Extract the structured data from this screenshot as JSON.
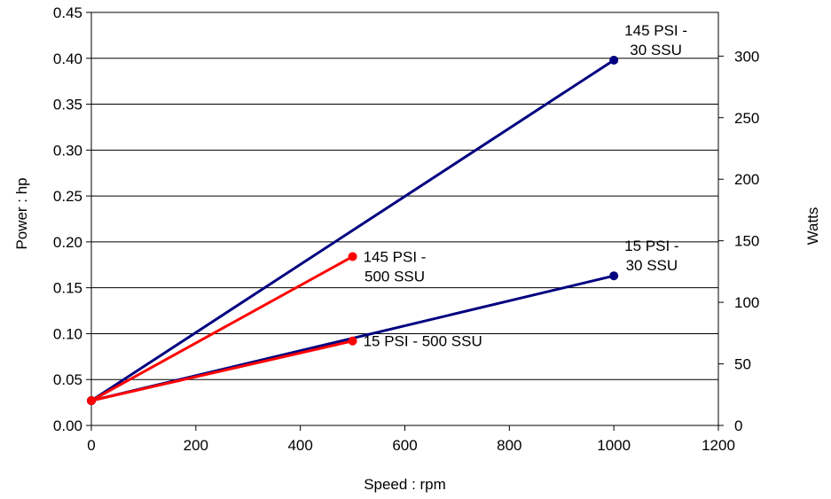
{
  "chart_data": {
    "type": "line",
    "xlabel": "Speed : rpm",
    "ylabel": "Power : hp",
    "y2label": "Watts",
    "xlim": [
      0,
      1200
    ],
    "ylim": [
      0,
      0.45
    ],
    "y2lim": [
      0,
      335.5
    ],
    "x_ticks": [
      "0",
      "200",
      "400",
      "600",
      "800",
      "1000",
      "1200"
    ],
    "y_ticks": [
      "0.00",
      "0.05",
      "0.10",
      "0.15",
      "0.20",
      "0.25",
      "0.30",
      "0.35",
      "0.40",
      "0.45"
    ],
    "y2_ticks": [
      "0",
      "50",
      "100",
      "150",
      "200",
      "250",
      "300"
    ],
    "grid": "horizontal",
    "series": [
      {
        "color": "#000080",
        "x": [
          0,
          1000
        ],
        "y": [
          0.027,
          0.398
        ]
      },
      {
        "color": "#ff0000",
        "x": [
          0,
          500
        ],
        "y": [
          0.027,
          0.184
        ]
      },
      {
        "color": "#000080",
        "x": [
          0,
          1000
        ],
        "y": [
          0.027,
          0.163
        ]
      },
      {
        "color": "#ff0000",
        "x": [
          0,
          500
        ],
        "y": [
          0.027,
          0.092
        ]
      }
    ],
    "annotations": [
      {
        "lines": [
          "145 PSI -",
          "30 SSU"
        ],
        "x": 1000,
        "y": 0.398,
        "anchor": "upper-right"
      },
      {
        "lines": [
          "145 PSI -",
          "500 SSU"
        ],
        "x": 500,
        "y": 0.184,
        "anchor": "right"
      },
      {
        "lines": [
          "15 PSI -",
          "30 SSU"
        ],
        "x": 1000,
        "y": 0.163,
        "anchor": "upper-right"
      },
      {
        "lines": [
          "15 PSI - 500 SSU"
        ],
        "x": 500,
        "y": 0.092,
        "anchor": "right"
      }
    ]
  }
}
